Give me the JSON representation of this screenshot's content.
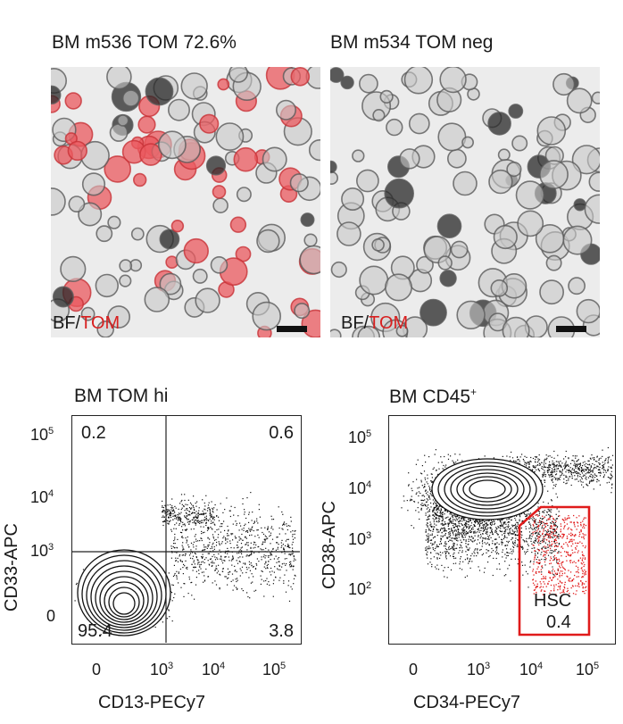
{
  "panels_top": {
    "left_title": "BM m536 TOM 72.6%",
    "right_title": "BM m534 TOM neg",
    "left_label_bf": "BF/",
    "left_label_tom": "TOM",
    "right_label_bf": "BF/",
    "right_label_tom": "TOM"
  },
  "flow_left": {
    "title": "BM TOM hi",
    "xlabel": "CD13-PECy7",
    "ylabel": "CD33-APC",
    "x_ticks": [
      "0",
      "10",
      "10",
      "10"
    ],
    "x_tick_exps": [
      "",
      "3",
      "4",
      "5"
    ],
    "y_ticks": [
      "0",
      "10",
      "10",
      "10"
    ],
    "y_tick_exps": [
      "",
      "3",
      "4",
      "5"
    ],
    "quadrants": {
      "top_left": "0.2",
      "top_right": "0.6",
      "bottom_left": "95.4",
      "bottom_right": "3.8"
    }
  },
  "flow_right": {
    "title": "BM CD45",
    "title_sup": "+",
    "xlabel": "CD34-PECy7",
    "ylabel": "CD38-APC",
    "x_ticks": [
      "0",
      "10",
      "10",
      "10"
    ],
    "x_tick_exps": [
      "",
      "3",
      "4",
      "5"
    ],
    "y_ticks": [
      "10",
      "10",
      "10",
      "10"
    ],
    "y_tick_exps": [
      "2",
      "3",
      "4",
      "5"
    ],
    "gate_name": "HSC",
    "gate_value": "0.4"
  },
  "colors": {
    "tom_red": "#d81f1f",
    "gate_red": "#e01b1b"
  }
}
